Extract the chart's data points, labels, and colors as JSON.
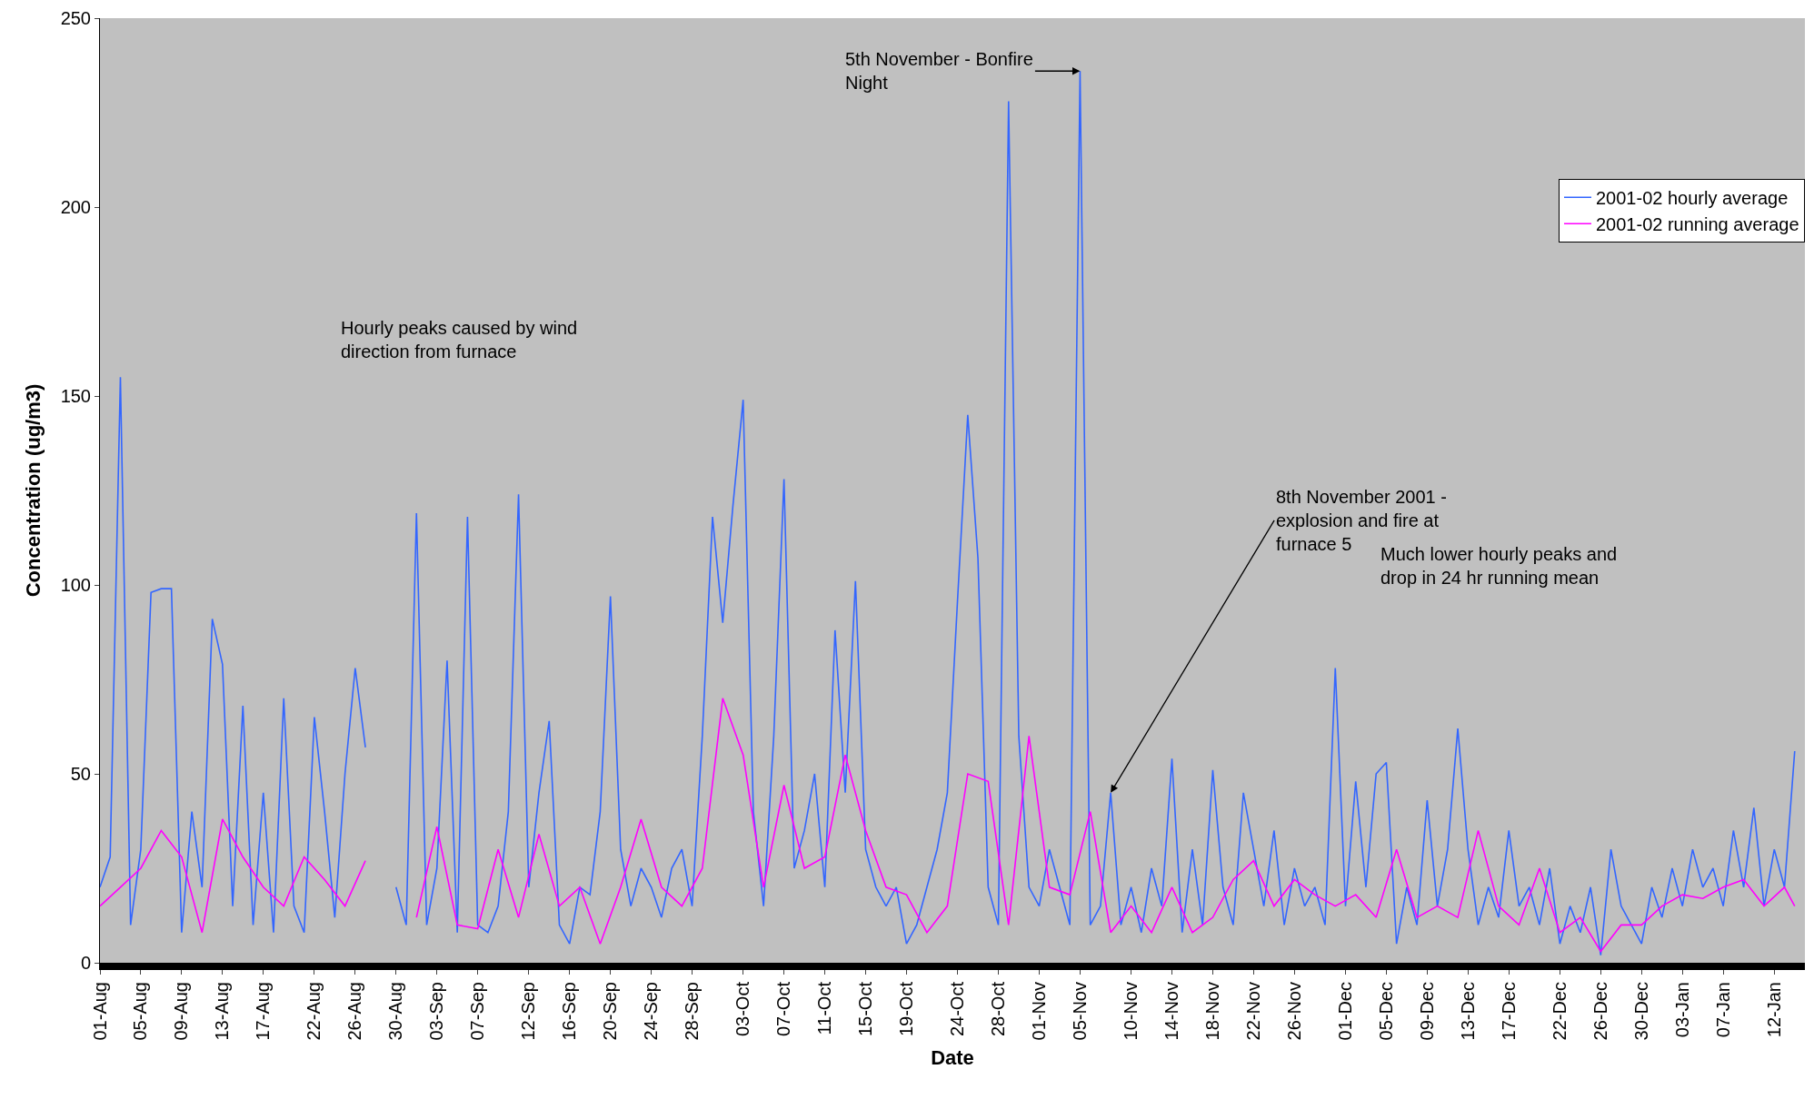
{
  "chart_data": {
    "type": "line",
    "xlabel": "Date",
    "ylabel": "Concentration (ug/m3)",
    "xlim": [
      "2001-08-01",
      "2002-01-15"
    ],
    "ylim": [
      0,
      250
    ],
    "yticks": [
      0,
      50,
      100,
      150,
      200,
      250
    ],
    "xticks": [
      {
        "value": "2001-08-01",
        "label": "01-Aug"
      },
      {
        "value": "2001-08-05",
        "label": "05-Aug"
      },
      {
        "value": "2001-08-09",
        "label": "09-Aug"
      },
      {
        "value": "2001-08-13",
        "label": "13-Aug"
      },
      {
        "value": "2001-08-17",
        "label": "17-Aug"
      },
      {
        "value": "2001-08-22",
        "label": "22-Aug"
      },
      {
        "value": "2001-08-26",
        "label": "26-Aug"
      },
      {
        "value": "2001-08-30",
        "label": "30-Aug"
      },
      {
        "value": "2001-09-03",
        "label": "03-Sep"
      },
      {
        "value": "2001-09-07",
        "label": "07-Sep"
      },
      {
        "value": "2001-09-12",
        "label": "12-Sep"
      },
      {
        "value": "2001-09-16",
        "label": "16-Sep"
      },
      {
        "value": "2001-09-20",
        "label": "20-Sep"
      },
      {
        "value": "2001-09-24",
        "label": "24-Sep"
      },
      {
        "value": "2001-09-28",
        "label": "28-Sep"
      },
      {
        "value": "2001-10-03",
        "label": "03-Oct"
      },
      {
        "value": "2001-10-07",
        "label": "07-Oct"
      },
      {
        "value": "2001-10-11",
        "label": "11-Oct"
      },
      {
        "value": "2001-10-15",
        "label": "15-Oct"
      },
      {
        "value": "2001-10-19",
        "label": "19-Oct"
      },
      {
        "value": "2001-10-24",
        "label": "24-Oct"
      },
      {
        "value": "2001-10-28",
        "label": "28-Oct"
      },
      {
        "value": "2001-11-01",
        "label": "01-Nov"
      },
      {
        "value": "2001-11-05",
        "label": "05-Nov"
      },
      {
        "value": "2001-11-10",
        "label": "10-Nov"
      },
      {
        "value": "2001-11-14",
        "label": "14-Nov"
      },
      {
        "value": "2001-11-18",
        "label": "18-Nov"
      },
      {
        "value": "2001-11-22",
        "label": "22-Nov"
      },
      {
        "value": "2001-11-26",
        "label": "26-Nov"
      },
      {
        "value": "2001-12-01",
        "label": "01-Dec"
      },
      {
        "value": "2001-12-05",
        "label": "05-Dec"
      },
      {
        "value": "2001-12-09",
        "label": "09-Dec"
      },
      {
        "value": "2001-12-13",
        "label": "13-Dec"
      },
      {
        "value": "2001-12-17",
        "label": "17-Dec"
      },
      {
        "value": "2001-12-22",
        "label": "22-Dec"
      },
      {
        "value": "2001-12-26",
        "label": "26-Dec"
      },
      {
        "value": "2001-12-30",
        "label": "30-Dec"
      },
      {
        "value": "2002-01-03",
        "label": "03-Jan"
      },
      {
        "value": "2002-01-07",
        "label": "07-Jan"
      },
      {
        "value": "2002-01-12",
        "label": "12-Jan"
      }
    ],
    "grid": false,
    "legend": "top right",
    "marker": "none",
    "line_style": "solid",
    "series": [
      {
        "name": "2001-02 hourly average",
        "color": "#3366ff",
        "x": [
          "2001-08-01",
          "2001-08-02",
          "2001-08-03",
          "2001-08-04",
          "2001-08-05",
          "2001-08-06",
          "2001-08-07",
          "2001-08-08",
          "2001-08-09",
          "2001-08-10",
          "2001-08-11",
          "2001-08-12",
          "2001-08-13",
          "2001-08-14",
          "2001-08-15",
          "2001-08-16",
          "2001-08-17",
          "2001-08-18",
          "2001-08-19",
          "2001-08-20",
          "2001-08-21",
          "2001-08-22",
          "2001-08-23",
          "2001-08-24",
          "2001-08-25",
          "2001-08-26",
          "2001-08-27",
          "2001-08-28",
          "2001-08-29",
          "2001-08-30",
          "2001-08-31",
          "2001-09-01",
          "2001-09-02",
          "2001-09-03",
          "2001-09-04",
          "2001-09-05",
          "2001-09-06",
          "2001-09-07",
          "2001-09-08",
          "2001-09-09",
          "2001-09-10",
          "2001-09-11",
          "2001-09-12",
          "2001-09-13",
          "2001-09-14",
          "2001-09-15",
          "2001-09-16",
          "2001-09-17",
          "2001-09-18",
          "2001-09-19",
          "2001-09-20",
          "2001-09-21",
          "2001-09-22",
          "2001-09-23",
          "2001-09-24",
          "2001-09-25",
          "2001-09-26",
          "2001-09-27",
          "2001-09-28",
          "2001-09-29",
          "2001-09-30",
          "2001-10-01",
          "2001-10-02",
          "2001-10-03",
          "2001-10-04",
          "2001-10-05",
          "2001-10-06",
          "2001-10-07",
          "2001-10-08",
          "2001-10-09",
          "2001-10-10",
          "2001-10-11",
          "2001-10-12",
          "2001-10-13",
          "2001-10-14",
          "2001-10-15",
          "2001-10-16",
          "2001-10-17",
          "2001-10-18",
          "2001-10-19",
          "2001-10-20",
          "2001-10-21",
          "2001-10-22",
          "2001-10-23",
          "2001-10-24",
          "2001-10-25",
          "2001-10-26",
          "2001-10-27",
          "2001-10-28",
          "2001-10-29",
          "2001-10-30",
          "2001-10-31",
          "2001-11-01",
          "2001-11-02",
          "2001-11-03",
          "2001-11-04",
          "2001-11-05",
          "2001-11-06",
          "2001-11-07",
          "2001-11-08",
          "2001-11-09",
          "2001-11-10",
          "2001-11-11",
          "2001-11-12",
          "2001-11-13",
          "2001-11-14",
          "2001-11-15",
          "2001-11-16",
          "2001-11-17",
          "2001-11-18",
          "2001-11-19",
          "2001-11-20",
          "2001-11-21",
          "2001-11-22",
          "2001-11-23",
          "2001-11-24",
          "2001-11-25",
          "2001-11-26",
          "2001-11-27",
          "2001-11-28",
          "2001-11-29",
          "2001-11-30",
          "2001-12-01",
          "2001-12-02",
          "2001-12-03",
          "2001-12-04",
          "2001-12-05",
          "2001-12-06",
          "2001-12-07",
          "2001-12-08",
          "2001-12-09",
          "2001-12-10",
          "2001-12-11",
          "2001-12-12",
          "2001-12-13",
          "2001-12-14",
          "2001-12-15",
          "2001-12-16",
          "2001-12-17",
          "2001-12-18",
          "2001-12-19",
          "2001-12-20",
          "2001-12-21",
          "2001-12-22",
          "2001-12-23",
          "2001-12-24",
          "2001-12-25",
          "2001-12-26",
          "2001-12-27",
          "2001-12-28",
          "2001-12-29",
          "2001-12-30",
          "2001-12-31",
          "2002-01-01",
          "2002-01-02",
          "2002-01-03",
          "2002-01-04",
          "2002-01-05",
          "2002-01-06",
          "2002-01-07",
          "2002-01-08",
          "2002-01-09",
          "2002-01-10",
          "2002-01-11",
          "2002-01-12",
          "2002-01-13",
          "2002-01-14"
        ],
        "values": [
          20,
          28,
          155,
          10,
          30,
          98,
          99,
          99,
          8,
          40,
          20,
          91,
          79,
          15,
          68,
          10,
          45,
          8,
          70,
          15,
          8,
          65,
          40,
          12,
          50,
          78,
          57,
          null,
          null,
          20,
          10,
          119,
          10,
          25,
          80,
          8,
          118,
          10,
          8,
          15,
          40,
          124,
          20,
          45,
          64,
          10,
          5,
          20,
          18,
          40,
          97,
          30,
          15,
          25,
          20,
          12,
          25,
          30,
          15,
          60,
          118,
          90,
          121,
          149,
          40,
          15,
          60,
          128,
          25,
          35,
          50,
          20,
          88,
          45,
          101,
          30,
          20,
          15,
          20,
          5,
          10,
          20,
          30,
          45,
          96,
          145,
          107,
          20,
          10,
          228,
          60,
          20,
          15,
          30,
          20,
          10,
          236,
          10,
          15,
          45,
          10,
          20,
          8,
          25,
          15,
          54,
          8,
          30,
          10,
          51,
          20,
          10,
          45,
          30,
          15,
          35,
          10,
          25,
          15,
          20,
          10,
          78,
          15,
          48,
          20,
          50,
          53,
          5,
          20,
          10,
          43,
          15,
          30,
          62,
          30,
          10,
          20,
          12,
          35,
          15,
          20,
          10,
          25,
          5,
          15,
          8,
          20,
          2,
          30,
          15,
          10,
          5,
          20,
          12,
          25,
          15,
          30,
          20,
          25,
          15,
          35,
          20,
          41,
          15,
          30,
          20,
          56
        ]
      },
      {
        "name": "2001-02 running average",
        "color": "#ff00ff",
        "x": [
          "2001-08-01",
          "2001-08-03",
          "2001-08-05",
          "2001-08-07",
          "2001-08-09",
          "2001-08-11",
          "2001-08-13",
          "2001-08-15",
          "2001-08-17",
          "2001-08-19",
          "2001-08-21",
          "2001-08-23",
          "2001-08-25",
          "2001-08-27",
          "2001-08-29",
          "2001-09-01",
          "2001-09-03",
          "2001-09-05",
          "2001-09-07",
          "2001-09-09",
          "2001-09-11",
          "2001-09-13",
          "2001-09-15",
          "2001-09-17",
          "2001-09-19",
          "2001-09-21",
          "2001-09-23",
          "2001-09-25",
          "2001-09-27",
          "2001-09-29",
          "2001-10-01",
          "2001-10-03",
          "2001-10-05",
          "2001-10-07",
          "2001-10-09",
          "2001-10-11",
          "2001-10-13",
          "2001-10-15",
          "2001-10-17",
          "2001-10-19",
          "2001-10-21",
          "2001-10-23",
          "2001-10-25",
          "2001-10-27",
          "2001-10-29",
          "2001-10-31",
          "2001-11-02",
          "2001-11-04",
          "2001-11-06",
          "2001-11-08",
          "2001-11-10",
          "2001-11-12",
          "2001-11-14",
          "2001-11-16",
          "2001-11-18",
          "2001-11-20",
          "2001-11-22",
          "2001-11-24",
          "2001-11-26",
          "2001-11-28",
          "2001-11-30",
          "2001-12-02",
          "2001-12-04",
          "2001-12-06",
          "2001-12-08",
          "2001-12-10",
          "2001-12-12",
          "2001-12-14",
          "2001-12-16",
          "2001-12-18",
          "2001-12-20",
          "2001-12-22",
          "2001-12-24",
          "2001-12-26",
          "2001-12-28",
          "2001-12-30",
          "2002-01-01",
          "2002-01-03",
          "2002-01-05",
          "2002-01-07",
          "2002-01-09",
          "2002-01-11",
          "2002-01-13",
          "2002-01-14"
        ],
        "values": [
          15,
          20,
          25,
          35,
          28,
          8,
          38,
          28,
          20,
          15,
          28,
          22,
          15,
          27,
          null,
          12,
          36,
          10,
          9,
          30,
          12,
          34,
          15,
          20,
          5,
          20,
          38,
          20,
          15,
          25,
          70,
          55,
          20,
          47,
          25,
          28,
          55,
          35,
          20,
          18,
          8,
          15,
          50,
          48,
          10,
          60,
          20,
          18,
          40,
          8,
          15,
          8,
          20,
          8,
          12,
          22,
          27,
          15,
          22,
          18,
          15,
          18,
          12,
          30,
          12,
          15,
          12,
          35,
          15,
          10,
          25,
          8,
          12,
          3,
          10,
          10,
          15,
          18,
          17,
          20,
          22,
          15,
          20,
          15
        ]
      }
    ],
    "annotations": [
      {
        "text": "5th November - Bonfire Night",
        "x": "2001-11-05",
        "y": 236
      },
      {
        "text": "8th November 2001 - explosion and fire at furnace 5",
        "x": "2001-11-08",
        "y": 45
      },
      "Hourly peaks caused by wind direction from furnace",
      "Much lower hourly peaks and drop in 24 hr running mean"
    ]
  }
}
